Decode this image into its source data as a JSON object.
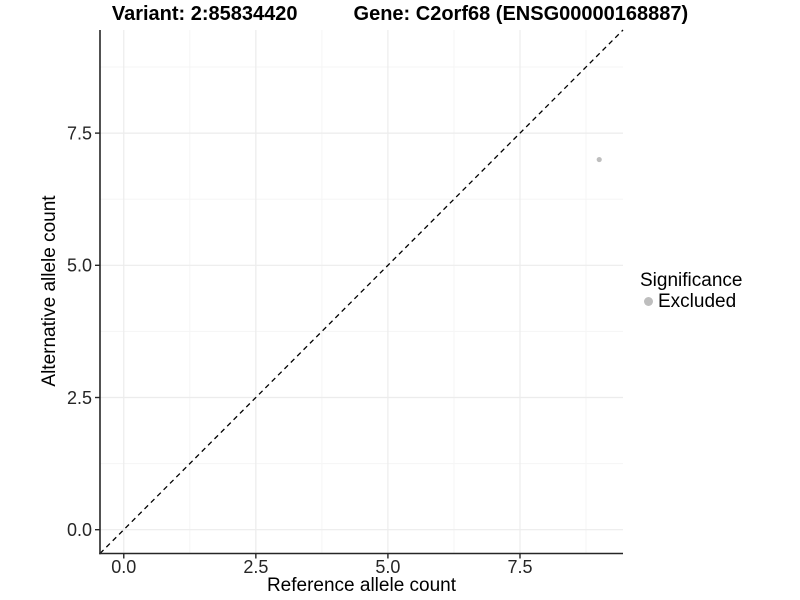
{
  "chart_data": {
    "type": "scatter",
    "titles": {
      "left": "Variant: 2:85834420",
      "right": "Gene: C2orf68 (ENSG00000168887)"
    },
    "xlabel": "Reference allele count",
    "ylabel": "Alternative allele count",
    "xlim": [
      -0.45,
      9.45
    ],
    "ylim": [
      -0.45,
      9.45
    ],
    "x_major_ticks": [
      0.0,
      2.5,
      5.0,
      7.5
    ],
    "y_major_ticks": [
      0.0,
      2.5,
      5.0,
      7.5
    ],
    "x_minor_ticks": [
      1.25,
      3.75,
      6.25,
      8.75
    ],
    "y_minor_ticks": [
      1.25,
      3.75,
      6.25,
      8.75
    ],
    "tick_decimals": 1,
    "grid": true,
    "series": [
      {
        "name": "Excluded",
        "color": "#bebebe",
        "points": [
          {
            "x": 9,
            "y": 7
          }
        ]
      }
    ],
    "reference_line": {
      "slope": 1,
      "intercept": 0,
      "style": "dashed",
      "color": "#000000"
    },
    "legend": {
      "title": "Significance",
      "position": "right",
      "items": [
        {
          "label": "Excluded",
          "color": "#bebebe"
        }
      ]
    },
    "theme": {
      "background": "#ffffff",
      "axis_line_color": "#262626",
      "tick_label_color": "#262626",
      "grid_major_color": "#ececec",
      "grid_minor_color": "#f5f5f5"
    }
  }
}
